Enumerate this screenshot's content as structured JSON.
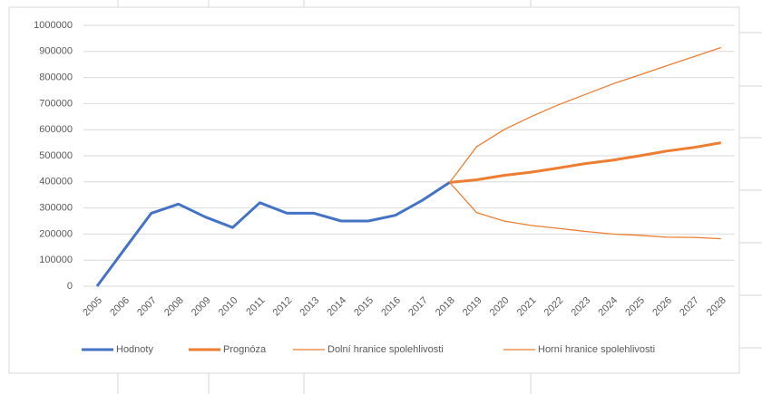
{
  "chart_data": {
    "type": "line",
    "categories": [
      "2005",
      "2006",
      "2007",
      "2008",
      "2009",
      "2010",
      "2011",
      "2012",
      "2013",
      "2014",
      "2015",
      "2016",
      "2017",
      "2018",
      "2019",
      "2020",
      "2021",
      "2022",
      "2023",
      "2024",
      "2025",
      "2026",
      "2027",
      "2028"
    ],
    "series": [
      {
        "name": "Hodnoty",
        "color": "#4472c4",
        "width": 3,
        "values": [
          0,
          140000,
          280000,
          315000,
          265000,
          225000,
          320000,
          280000,
          280000,
          250000,
          250000,
          272000,
          330000,
          398000,
          null,
          null,
          null,
          null,
          null,
          null,
          null,
          null,
          null,
          null
        ]
      },
      {
        "name": "Prognóza",
        "color": "#ed7d31",
        "width": 3,
        "values": [
          null,
          null,
          null,
          null,
          null,
          null,
          null,
          null,
          null,
          null,
          null,
          null,
          null,
          398000,
          408000,
          425000,
          437000,
          453000,
          470000,
          483000,
          500000,
          518000,
          532000,
          550000
        ]
      },
      {
        "name": "Dolní hranice spolehlivosti",
        "color": "#ed7d31",
        "width": 1.3,
        "values": [
          null,
          null,
          null,
          null,
          null,
          null,
          null,
          null,
          null,
          null,
          null,
          null,
          null,
          398000,
          282000,
          250000,
          233000,
          222000,
          210000,
          200000,
          195000,
          188000,
          187000,
          182000
        ]
      },
      {
        "name": "Horní hranice spolehlivosti",
        "color": "#ed7d31",
        "width": 1.3,
        "values": [
          null,
          null,
          null,
          null,
          null,
          null,
          null,
          null,
          null,
          null,
          null,
          null,
          null,
          398000,
          535000,
          600000,
          650000,
          695000,
          735000,
          775000,
          810000,
          845000,
          880000,
          915000
        ]
      }
    ],
    "ylim": [
      0,
      1000000
    ],
    "yticks": [
      0,
      100000,
      200000,
      300000,
      400000,
      500000,
      600000,
      700000,
      800000,
      900000,
      1000000
    ],
    "grid": true,
    "legend": "bottom"
  }
}
